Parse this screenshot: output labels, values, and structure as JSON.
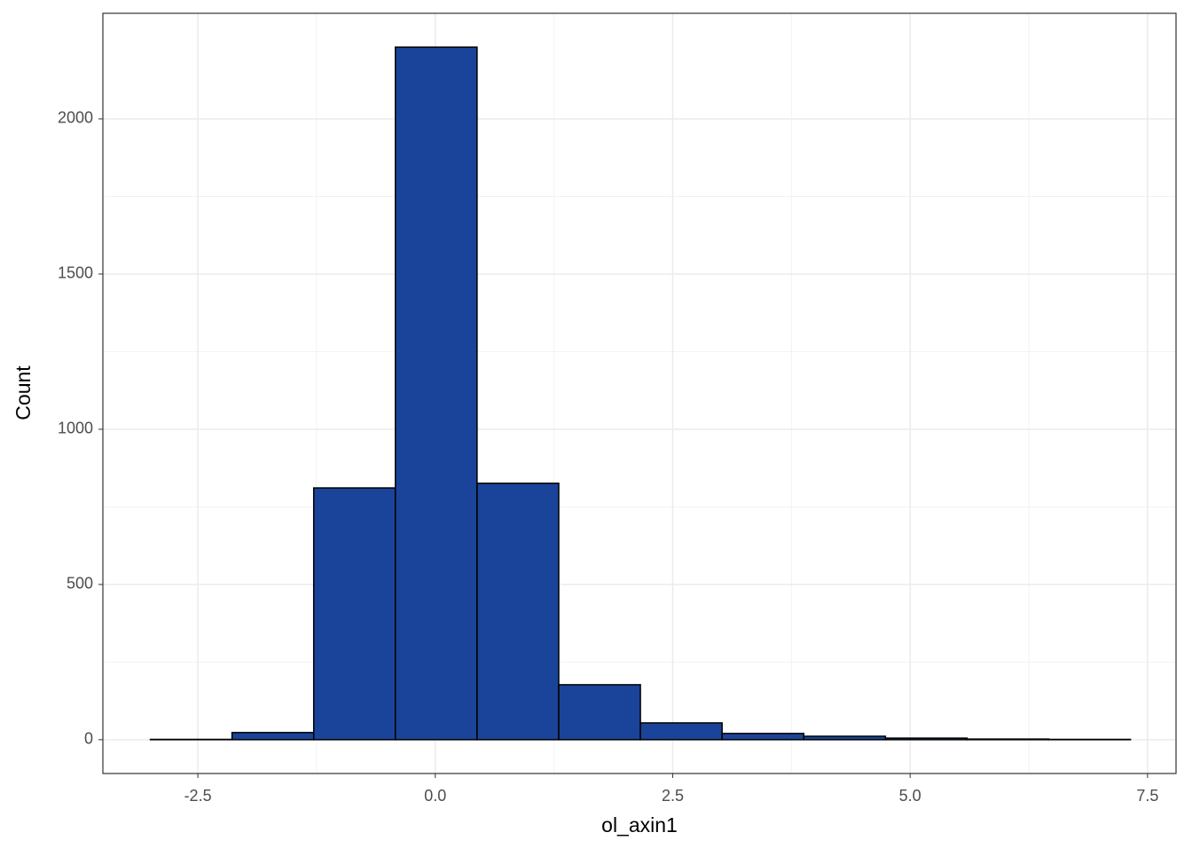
{
  "chart_data": {
    "type": "histogram",
    "x_label": "ol_axin1",
    "y_label": "Count",
    "bins": [
      -3.0,
      -2.14,
      -1.28,
      -0.42,
      0.44,
      1.3,
      2.16,
      3.02,
      3.88,
      4.74,
      5.6,
      6.46,
      7.32
    ],
    "values": [
      1,
      23,
      811,
      2231,
      826,
      177,
      54,
      20,
      11,
      5,
      2,
      1
    ],
    "color": "#1a4499",
    "edge_color": "#000000",
    "xlim": [
      -3.5,
      7.8
    ],
    "ylim": [
      -109,
      2340
    ],
    "xticks": [
      -2.5,
      {
        "value": 0,
        "label": "0.0"
      },
      2.5,
      {
        "value": 5,
        "label": "5.0"
      },
      7.5
    ],
    "yticks": [
      0,
      500,
      1000,
      1500,
      2000
    ],
    "grid": true
  }
}
